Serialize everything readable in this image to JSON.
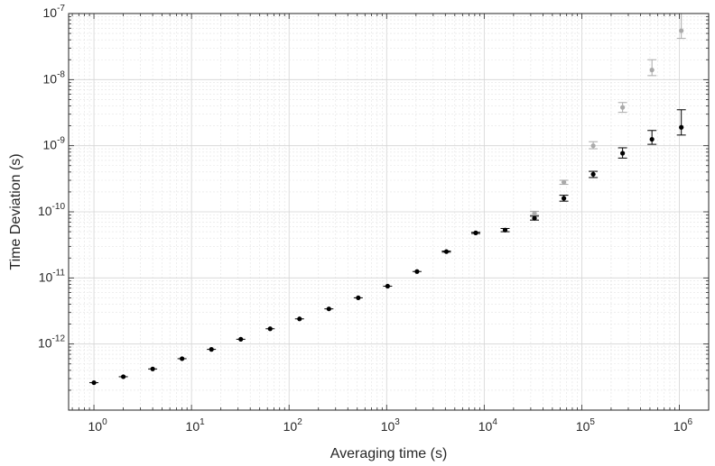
{
  "chart_data": {
    "type": "scatter",
    "xlabel": "Averaging time (s)",
    "ylabel": "Time Deviation (s)",
    "x_scale": "log",
    "y_scale": "log",
    "xlim": [
      0.55,
      2000000
    ],
    "ylim": [
      1e-13,
      1e-07
    ],
    "x_ticks": [
      {
        "base": "10",
        "exp": "0"
      },
      {
        "base": "10",
        "exp": "1"
      },
      {
        "base": "10",
        "exp": "2"
      },
      {
        "base": "10",
        "exp": "3"
      },
      {
        "base": "10",
        "exp": "4"
      },
      {
        "base": "10",
        "exp": "5"
      },
      {
        "base": "10",
        "exp": "6"
      }
    ],
    "y_ticks": [
      {
        "base": "10",
        "exp": "-12"
      },
      {
        "base": "10",
        "exp": "-11"
      },
      {
        "base": "10",
        "exp": "-10"
      },
      {
        "base": "10",
        "exp": "-9"
      },
      {
        "base": "10",
        "exp": "-8"
      },
      {
        "base": "10",
        "exp": "-7"
      }
    ],
    "grid": true,
    "series": [
      {
        "color": "#aaaaaa",
        "points": [
          {
            "x": 32768,
            "y": 9.5e-11,
            "lo": 9e-11,
            "hi": 1.02e-10
          },
          {
            "x": 65536,
            "y": 2.8e-10,
            "lo": 2.6e-10,
            "hi": 3e-10
          },
          {
            "x": 131072,
            "y": 1e-09,
            "lo": 9e-10,
            "hi": 1.15e-09
          },
          {
            "x": 262144,
            "y": 3.8e-09,
            "lo": 3.2e-09,
            "hi": 4.5e-09
          },
          {
            "x": 524288,
            "y": 1.4e-08,
            "lo": 1.15e-08,
            "hi": 2e-08
          },
          {
            "x": 1048576,
            "y": 5.5e-08,
            "lo": 4.2e-08,
            "hi": 1e-07
          }
        ]
      },
      {
        "color": "#000000",
        "points": [
          {
            "x": 1,
            "y": 2.6e-13,
            "lo": 2.6e-13,
            "hi": 2.6e-13
          },
          {
            "x": 2,
            "y": 3.2e-13,
            "lo": 3.2e-13,
            "hi": 3.2e-13
          },
          {
            "x": 4,
            "y": 4.2e-13,
            "lo": 4.2e-13,
            "hi": 4.2e-13
          },
          {
            "x": 8,
            "y": 6e-13,
            "lo": 6e-13,
            "hi": 6e-13
          },
          {
            "x": 16,
            "y": 8.3e-13,
            "lo": 8.3e-13,
            "hi": 8.3e-13
          },
          {
            "x": 32,
            "y": 1.18e-12,
            "lo": 1.18e-12,
            "hi": 1.18e-12
          },
          {
            "x": 64,
            "y": 1.7e-12,
            "lo": 1.7e-12,
            "hi": 1.7e-12
          },
          {
            "x": 128,
            "y": 2.4e-12,
            "lo": 2.4e-12,
            "hi": 2.4e-12
          },
          {
            "x": 256,
            "y": 3.4e-12,
            "lo": 3.4e-12,
            "hi": 3.4e-12
          },
          {
            "x": 512,
            "y": 5e-12,
            "lo": 5e-12,
            "hi": 5e-12
          },
          {
            "x": 1024,
            "y": 7.5e-12,
            "lo": 7.5e-12,
            "hi": 7.5e-12
          },
          {
            "x": 2048,
            "y": 1.25e-11,
            "lo": 1.25e-11,
            "hi": 1.25e-11
          },
          {
            "x": 4096,
            "y": 2.5e-11,
            "lo": 2.45e-11,
            "hi": 2.55e-11
          },
          {
            "x": 8192,
            "y": 4.8e-11,
            "lo": 4.7e-11,
            "hi": 4.9e-11
          },
          {
            "x": 16384,
            "y": 5.3e-11,
            "lo": 5e-11,
            "hi": 5.6e-11
          },
          {
            "x": 32768,
            "y": 8e-11,
            "lo": 7.5e-11,
            "hi": 8.6e-11
          },
          {
            "x": 65536,
            "y": 1.6e-10,
            "lo": 1.45e-10,
            "hi": 1.78e-10
          },
          {
            "x": 131072,
            "y": 3.7e-10,
            "lo": 3.3e-10,
            "hi": 4.1e-10
          },
          {
            "x": 262144,
            "y": 7.7e-10,
            "lo": 6.5e-10,
            "hi": 9.3e-10
          },
          {
            "x": 524288,
            "y": 1.25e-09,
            "lo": 1.05e-09,
            "hi": 1.7e-09
          },
          {
            "x": 1048576,
            "y": 1.9e-09,
            "lo": 1.45e-09,
            "hi": 3.5e-09
          }
        ]
      }
    ]
  }
}
